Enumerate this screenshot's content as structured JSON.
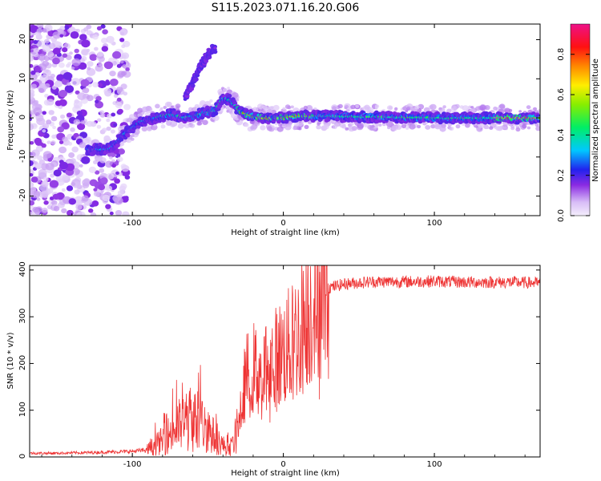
{
  "figure_title": "S115.2023.071.16.20.G06",
  "chart_data": [
    {
      "type": "heatmap",
      "title": "",
      "xlabel": "Height of straight line (km)",
      "ylabel": "Frequency (Hz)",
      "xlim": [
        -168,
        170
      ],
      "ylim": [
        -25,
        24
      ],
      "xticks": [
        -100,
        0,
        100
      ],
      "yticks": [
        -20,
        -10,
        0,
        10,
        20
      ],
      "colorbar": {
        "label": "Normalized spectral amplitude",
        "range": [
          0,
          0.95
        ],
        "ticks": [
          "0.0",
          "0.2",
          "0.4",
          "0.6",
          "0.8"
        ],
        "colormap": "hsv-like: light lavender → purple → blue → cyan → green → yellow → orange → red → magenta"
      },
      "ridges": [
        {
          "x": [
            -130,
            -115,
            -105,
            -95,
            -85,
            -75,
            -65,
            -55,
            -45,
            -40,
            -35,
            -30,
            -25,
            -20,
            -15,
            -10,
            0,
            10,
            20,
            50,
            100,
            150,
            170
          ],
          "y": [
            -8,
            -8,
            -4,
            -1,
            0,
            1,
            0,
            1,
            2,
            5,
            4.5,
            2,
            1,
            0.5,
            0,
            0,
            0,
            0.5,
            0.5,
            0.3,
            0,
            0,
            0
          ]
        },
        {
          "x": [
            -65,
            -60,
            -55,
            -50,
            -45
          ],
          "y": [
            5,
            9,
            13,
            16,
            18
          ]
        }
      ]
    },
    {
      "type": "line",
      "title": "",
      "xlabel": "Height of straight line (km)",
      "ylabel": "SNR (10 * v/v)",
      "xlim": [
        -168,
        170
      ],
      "ylim": [
        0,
        410
      ],
      "xticks": [
        -100,
        0,
        100
      ],
      "yticks": [
        0,
        100,
        200,
        300,
        400
      ],
      "series_color": "#ee3333",
      "envelope": {
        "x": [
          -168,
          -150,
          -120,
          -100,
          -90,
          -80,
          -70,
          -60,
          -50,
          -45,
          -40,
          -35,
          -30,
          -25,
          -20,
          -15,
          -10,
          -5,
          0,
          5,
          10,
          15,
          20,
          25,
          30,
          40,
          50,
          60,
          80,
          100,
          120,
          150,
          170
        ],
        "y": [
          8,
          8,
          10,
          12,
          15,
          35,
          65,
          80,
          60,
          40,
          25,
          15,
          55,
          170,
          190,
          180,
          200,
          210,
          225,
          240,
          265,
          300,
          330,
          350,
          362,
          370,
          373,
          375,
          375,
          376,
          374,
          374,
          372
        ]
      }
    }
  ]
}
